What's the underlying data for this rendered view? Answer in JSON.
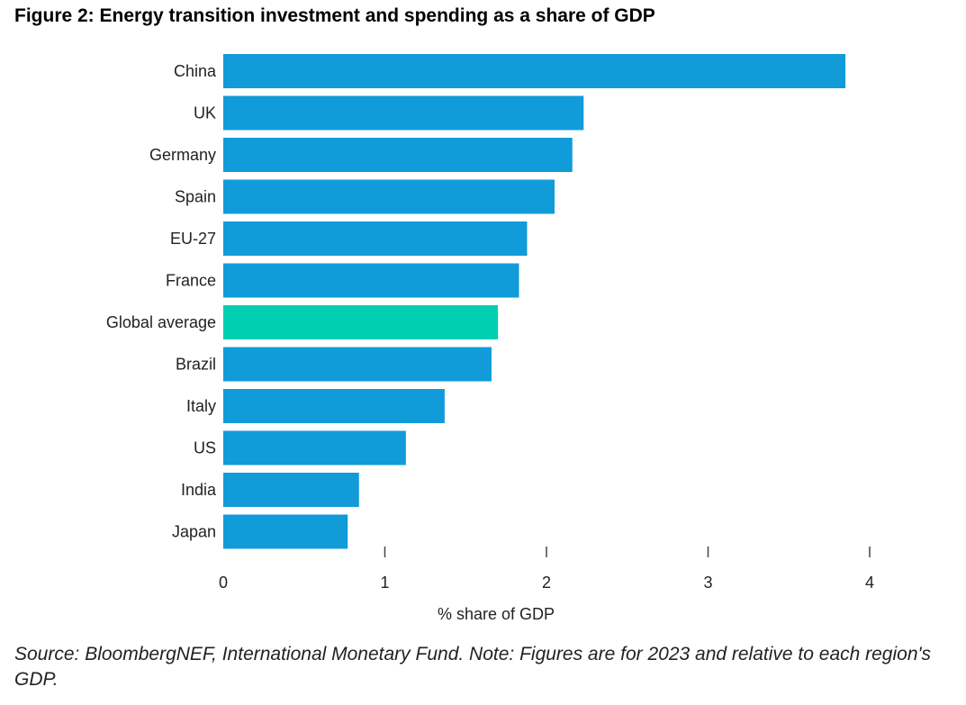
{
  "figure": {
    "title": "Figure 2: Energy transition investment and spending as a share of GDP",
    "note": "Source: BloombergNEF, International Monetary Fund. Note: Figures are for 2023 and relative to each region's GDP."
  },
  "colors": {
    "bar": "#119bd9",
    "highlight": "#00cfb2",
    "axis": "#444444",
    "text": "#222222"
  },
  "chart_data": {
    "type": "bar",
    "orientation": "horizontal",
    "categories": [
      "China",
      "UK",
      "Germany",
      "Spain",
      "EU-27",
      "France",
      "Global average",
      "Brazil",
      "Italy",
      "US",
      "India",
      "Japan"
    ],
    "values": [
      3.85,
      2.23,
      2.16,
      2.05,
      1.88,
      1.83,
      1.7,
      1.66,
      1.37,
      1.13,
      0.84,
      0.77
    ],
    "highlight_category": "Global average",
    "xlabel": "% share of GDP",
    "ylabel": "",
    "xlim": [
      0,
      4
    ],
    "xticks": [
      0,
      1,
      2,
      3,
      4
    ],
    "grid": false,
    "legend": "none"
  }
}
